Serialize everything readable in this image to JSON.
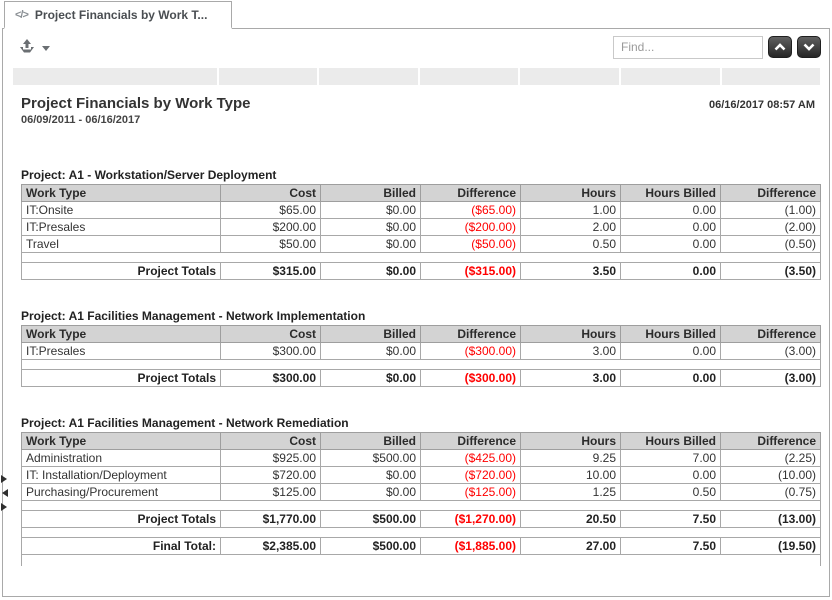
{
  "tab": {
    "label": "Project Financials by Work T...",
    "icon_glyph": "</>"
  },
  "toolbar": {
    "find_placeholder": "Find..."
  },
  "report": {
    "title": "Project Financials by Work Type",
    "date_range": "06/09/2011 - 06/16/2017",
    "generated": "06/16/2017 08:57 AM",
    "columns": [
      "Work Type",
      "Cost",
      "Billed",
      "Difference",
      "Hours",
      "Hours Billed",
      "Difference"
    ],
    "sections": [
      {
        "title": "Project: A1 - Workstation/Server Deployment",
        "rows": [
          [
            "IT:Onsite",
            "$65.00",
            "$0.00",
            "($65.00)",
            "1.00",
            "0.00",
            "(1.00)"
          ],
          [
            "IT:Presales",
            "$200.00",
            "$0.00",
            "($200.00)",
            "2.00",
            "0.00",
            "(2.00)"
          ],
          [
            "Travel",
            "$50.00",
            "$0.00",
            "($50.00)",
            "0.50",
            "0.00",
            "(0.50)"
          ]
        ],
        "totals": [
          "Project Totals",
          "$315.00",
          "$0.00",
          "($315.00)",
          "3.50",
          "0.00",
          "(3.50)"
        ]
      },
      {
        "title": "Project: A1 Facilities Management - Network Implementation",
        "rows": [
          [
            "IT:Presales",
            "$300.00",
            "$0.00",
            "($300.00)",
            "3.00",
            "0.00",
            "(3.00)"
          ]
        ],
        "totals": [
          "Project Totals",
          "$300.00",
          "$0.00",
          "($300.00)",
          "3.00",
          "0.00",
          "(3.00)"
        ]
      },
      {
        "title": "Project: A1 Facilities Management - Network Remediation",
        "rows": [
          [
            "Administration",
            "$925.00",
            "$500.00",
            "($425.00)",
            "9.25",
            "7.00",
            "(2.25)"
          ],
          [
            "IT: Installation/Deployment",
            "$720.00",
            "$0.00",
            "($720.00)",
            "10.00",
            "0.00",
            "(10.00)"
          ],
          [
            "Purchasing/Procurement",
            "$125.00",
            "$0.00",
            "($125.00)",
            "1.25",
            "0.50",
            "(0.75)"
          ]
        ],
        "totals": [
          "Project Totals",
          "$1,770.00",
          "$500.00",
          "($1,270.00)",
          "20.50",
          "7.50",
          "(13.00)"
        ],
        "final": [
          "Final Total:",
          "$2,385.00",
          "$500.00",
          "($1,885.00)",
          "27.00",
          "7.50",
          "(19.50)"
        ]
      }
    ]
  },
  "colors": {
    "negative": "#ff0000",
    "header_bg": "#d3d3d3",
    "accent_button": "#3a3a3a"
  }
}
